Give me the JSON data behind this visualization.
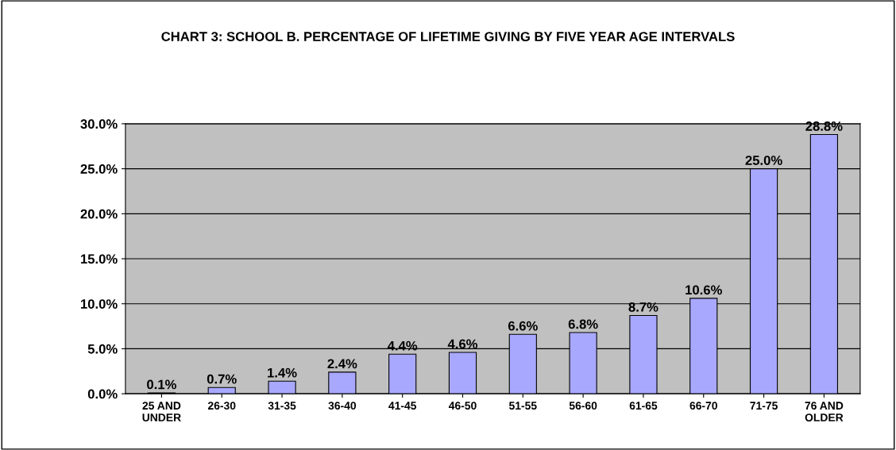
{
  "chart_data": {
    "type": "bar",
    "title": "CHART 3: SCHOOL B. PERCENTAGE OF LIFETIME GIVING BY FIVE YEAR AGE INTERVALS",
    "categories": [
      "25 AND\nUNDER",
      "26-30",
      "31-35",
      "36-40",
      "41-45",
      "46-50",
      "51-55",
      "56-60",
      "61-65",
      "66-70",
      "71-75",
      "76 AND\nOLDER"
    ],
    "values": [
      0.1,
      0.7,
      1.4,
      2.4,
      4.4,
      4.6,
      6.6,
      6.8,
      8.7,
      10.6,
      25.0,
      28.8
    ],
    "value_labels": [
      "0.1%",
      "0.7%",
      "1.4%",
      "2.4%",
      "4.4%",
      "4.6%",
      "6.6%",
      "6.8%",
      "8.7%",
      "10.6%",
      "25.0%",
      "28.8%"
    ],
    "color": "#a8a8ff",
    "ylim": [
      0,
      30
    ],
    "yticks": [
      {
        "value": 0,
        "label": "0.0%"
      },
      {
        "value": 5,
        "label": "5.0%"
      },
      {
        "value": 10,
        "label": "10.0%"
      },
      {
        "value": 15,
        "label": "15.0%"
      },
      {
        "value": 20,
        "label": "20.0%"
      },
      {
        "value": 25,
        "label": "25.0%"
      },
      {
        "value": 30,
        "label": "30.0%"
      }
    ],
    "grid": "y",
    "legend": false
  }
}
